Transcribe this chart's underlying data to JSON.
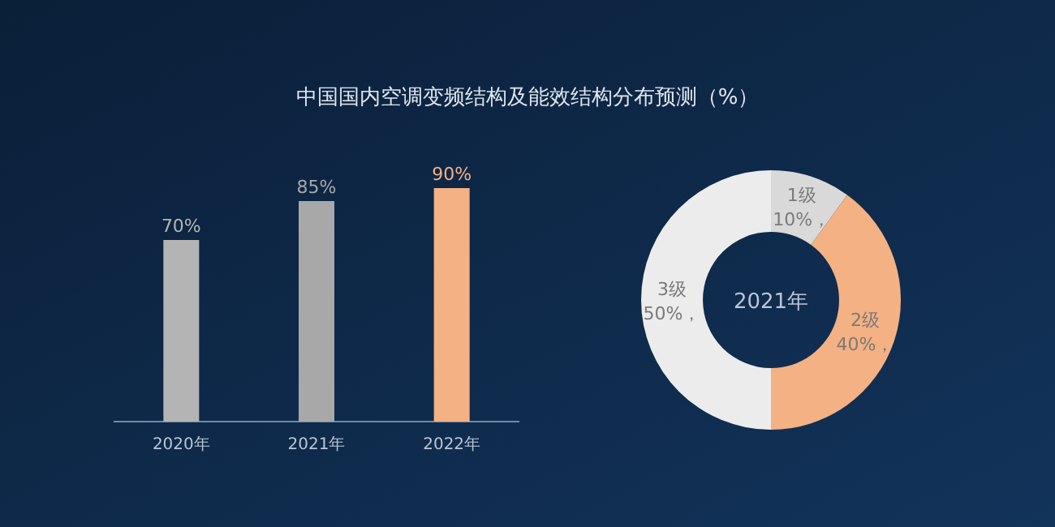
{
  "chart_data": [
    {
      "type": "bar",
      "title": "中国国内空调变频结构及能效结构分布预测（%）",
      "categories": [
        "2020年",
        "2021年",
        "2022年"
      ],
      "values": [
        70,
        85,
        90
      ],
      "colors": [
        "#b4b4b4",
        "#a8a8a8",
        "#f4b183"
      ],
      "value_labels": [
        "70%",
        "85%",
        "90%"
      ]
    },
    {
      "type": "donut",
      "categories": [
        "1级",
        "2级",
        "3级"
      ],
      "values": [
        10,
        40,
        50
      ],
      "colors": [
        "#d9d9d9",
        "#f4b183",
        "#ececec"
      ],
      "value_labels": [
        "10%，",
        "40%，",
        "50%，"
      ],
      "annotations": [
        "2021年"
      ]
    }
  ]
}
